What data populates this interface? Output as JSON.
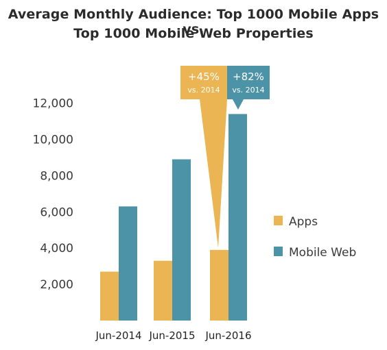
{
  "chart_data": {
    "type": "bar",
    "title_line1": "Average Monthly Audience: Top 1000 Mobile Apps vs.",
    "title_line2": "Top 1000 Mobile Web Properties",
    "categories": [
      "Jun-2014",
      "Jun-2015",
      "Jun-2016"
    ],
    "series": [
      {
        "name": "Apps",
        "color": "#eab552",
        "values": [
          2700,
          3300,
          3900
        ]
      },
      {
        "name": "Mobile Web",
        "color": "#4d93a8",
        "values": [
          6300,
          8900,
          11400
        ]
      }
    ],
    "y_ticks": [
      "2,000",
      "4,000",
      "6,000",
      "8,000",
      "10,000",
      "12,000"
    ],
    "y_tick_values": [
      2000,
      4000,
      6000,
      8000,
      10000,
      12000
    ],
    "ylim": [
      0,
      12000
    ],
    "legend": {
      "position": "right",
      "items": [
        "Apps",
        "Mobile Web"
      ]
    },
    "callouts": [
      {
        "series": "Apps",
        "category": "Jun-2016",
        "line1": "+45%",
        "line2": "vs. 2014"
      },
      {
        "series": "Mobile Web",
        "category": "Jun-2016",
        "line1": "+82%",
        "line2": "vs. 2014"
      }
    ],
    "grid": false
  }
}
